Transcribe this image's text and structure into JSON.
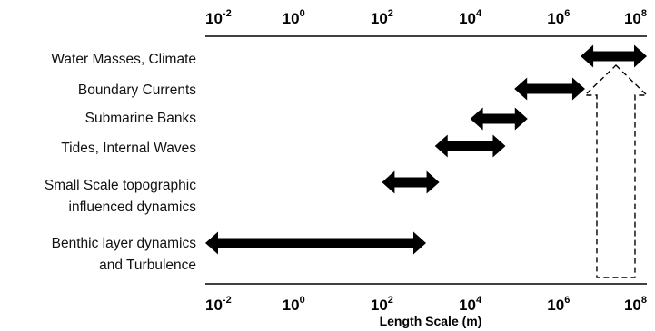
{
  "axis": {
    "title": "Length Scale (m)",
    "ticks": [
      {
        "base": "10",
        "exp": "-2",
        "value": -2
      },
      {
        "base": "10",
        "exp": "0",
        "value": 0
      },
      {
        "base": "10",
        "exp": "2",
        "value": 2
      },
      {
        "base": "10",
        "exp": "4",
        "value": 4
      },
      {
        "base": "10",
        "exp": "6",
        "value": 6
      },
      {
        "base": "10",
        "exp": "8",
        "value": 8
      }
    ]
  },
  "processes": [
    {
      "id": "water-masses",
      "lines": [
        "Water Masses, Climate"
      ],
      "range": [
        6.5,
        8.0
      ]
    },
    {
      "id": "boundary-currents",
      "lines": [
        "Boundary Currents"
      ],
      "range": [
        5.0,
        6.6
      ]
    },
    {
      "id": "submarine-banks",
      "lines": [
        "Submarine Banks"
      ],
      "range": [
        4.0,
        5.3
      ]
    },
    {
      "id": "tides-internal-waves",
      "lines": [
        "Tides, Internal Waves"
      ],
      "range": [
        3.2,
        4.8
      ]
    },
    {
      "id": "small-scale-topographic",
      "lines": [
        "Small Scale topographic",
        "influenced dynamics"
      ],
      "range": [
        2.0,
        3.3
      ]
    },
    {
      "id": "benthic-layer",
      "lines": [
        "Benthic layer dynamics",
        "and Turbulence"
      ],
      "range": [
        -2.0,
        3.0
      ]
    }
  ],
  "highlight": {
    "value": 7.3,
    "style": "dashed-up-arrow"
  },
  "colors": {
    "arrow": "#000000",
    "line": "#000000",
    "dashed": "#000000"
  }
}
